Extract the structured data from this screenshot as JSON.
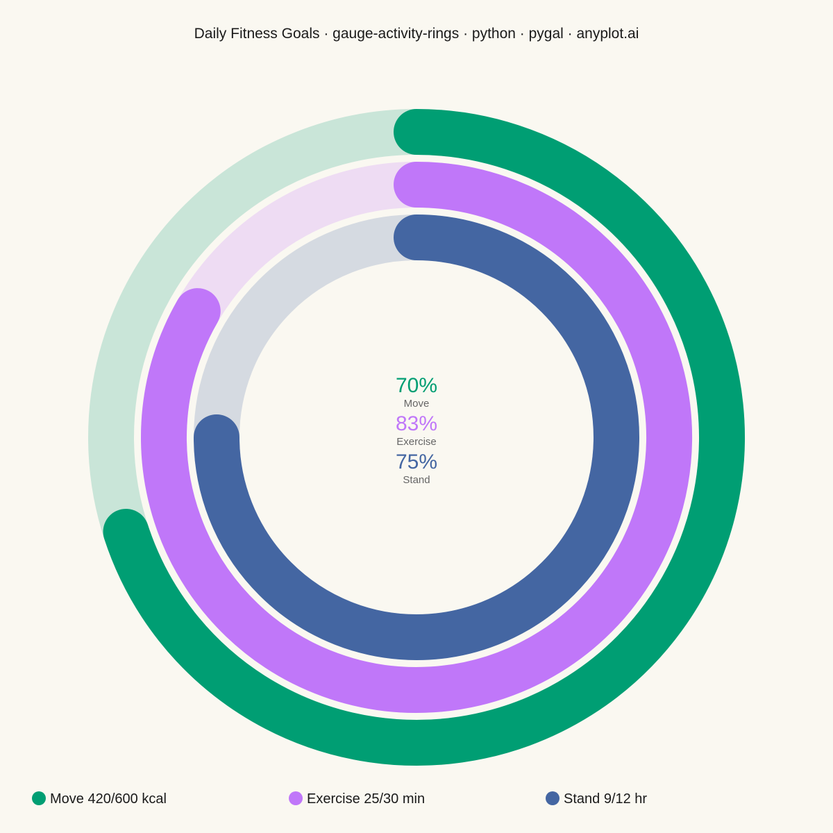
{
  "chart_data": {
    "type": "radial-gauge",
    "title": "Daily Fitness Goals · gauge-activity-rings · python · pygal · anyplot.ai",
    "rings": [
      {
        "name": "Move",
        "value": 420,
        "goal": 600,
        "unit": "kcal",
        "percent_label": "70%",
        "fraction": 0.7,
        "legend_label": "Move 420/600 kcal",
        "color": "#009E73",
        "track_color": "#C9E5D8"
      },
      {
        "name": "Exercise",
        "value": 25,
        "goal": 30,
        "unit": "min",
        "percent_label": "83%",
        "fraction": 0.8333,
        "legend_label": "Exercise 25/30 min",
        "color": "#C077F9",
        "track_color": "#EEDCF3"
      },
      {
        "name": "Stand",
        "value": 9,
        "goal": 12,
        "unit": "hr",
        "percent_label": "75%",
        "fraction": 0.75,
        "legend_label": "Stand 9/12 hr",
        "color": "#4466A2",
        "track_color": "#D5DAE1"
      }
    ],
    "legend_position": "bottom"
  },
  "colors": {
    "background": "#FAF8F1"
  }
}
